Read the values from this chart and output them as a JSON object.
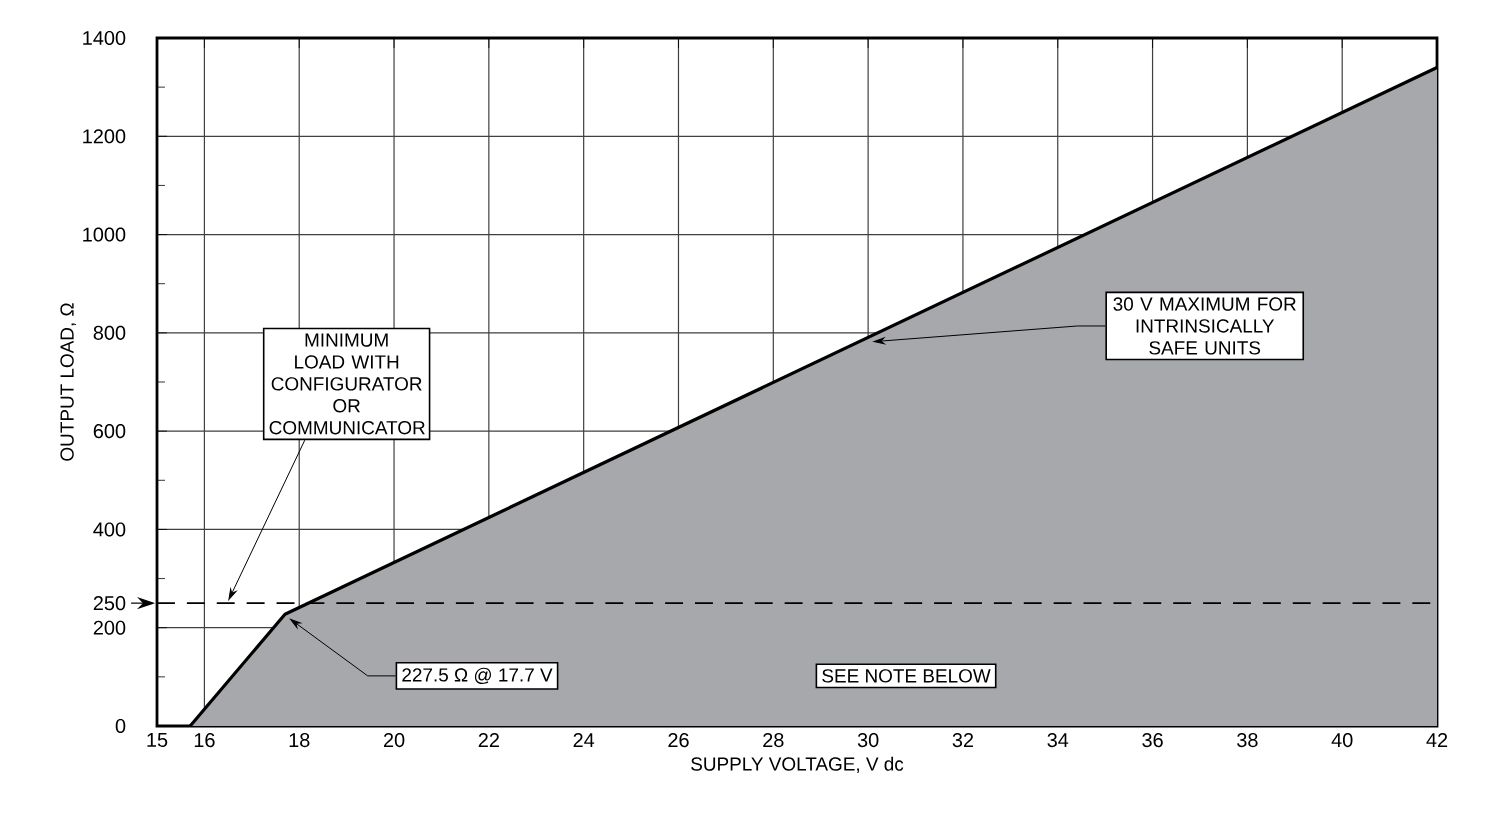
{
  "chart_data": {
    "type": "area",
    "xlabel": "SUPPLY VOLTAGE, V dc",
    "ylabel": "OUTPUT LOAD, Ω",
    "x": [
      15.7,
      17.7,
      42
    ],
    "series": [
      {
        "color": "#a7a8ab",
        "values": [
          0,
          227.5,
          1340
        ]
      }
    ],
    "xlim": [
      15,
      42
    ],
    "ylim": [
      0,
      1400
    ],
    "xticks": [
      15,
      16,
      18,
      20,
      22,
      24,
      26,
      28,
      30,
      32,
      34,
      36,
      38,
      40,
      42
    ],
    "yticks": [
      0,
      200,
      250,
      400,
      600,
      800,
      1000,
      1200,
      1400
    ],
    "grid": true,
    "ref_lines": [
      {
        "axis": "y",
        "value": 250,
        "line_style": "dashed"
      }
    ],
    "annotations": [
      {
        "text": "MINIMUM LOAD WITH CONFIGURATOR OR COMMUNICATOR",
        "x": 16.5,
        "y": 250
      },
      {
        "text": "30 V MAXIMUM FOR INTRINSICALLY SAFE UNITS",
        "x": 30,
        "y": 790
      },
      {
        "text": "227.5 Ω @ 17.7 V",
        "x": 17.7,
        "y": 227.5
      },
      "SEE NOTE BELOW"
    ]
  }
}
